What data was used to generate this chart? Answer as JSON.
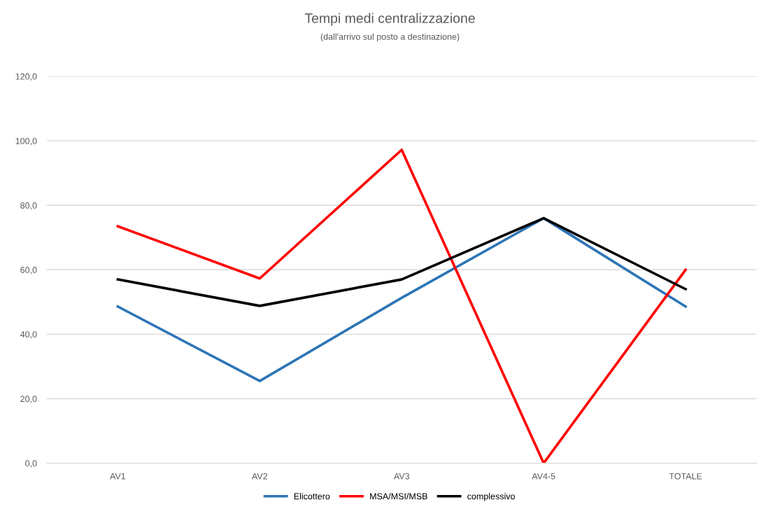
{
  "chart_data": {
    "type": "line",
    "title": "Tempi medi centralizzazione",
    "subtitle": "(dall'arrivo sul posto a destinazione)",
    "categories": [
      "AV1",
      "AV2",
      "AV3",
      "AV4-5",
      "TOTALE"
    ],
    "series": [
      {
        "name": "Elicottero",
        "color": "#2e75b6",
        "values": [
          48.6,
          25.5,
          51.3,
          76.0,
          48.6
        ]
      },
      {
        "name": "MSA/MSI/MSB",
        "color": "#ff0000",
        "values": [
          73.5,
          57.3,
          97.2,
          0.0,
          60.0
        ]
      },
      {
        "name": "complessivo",
        "color": "#000000",
        "values": [
          57.0,
          48.8,
          57.0,
          76.0,
          54.0
        ]
      }
    ],
    "ylim": [
      0,
      120
    ],
    "yticks": [
      {
        "value": 0,
        "label": "0,0"
      },
      {
        "value": 20,
        "label": "20,0"
      },
      {
        "value": 40,
        "label": "40,0"
      },
      {
        "value": 60,
        "label": "60,0"
      },
      {
        "value": 80,
        "label": "80,0"
      },
      {
        "value": 100,
        "label": "100,0"
      },
      {
        "value": 120,
        "label": "120,0"
      }
    ],
    "grid": "y",
    "legend": "bottom",
    "marker": "none",
    "line_style": "solid"
  }
}
